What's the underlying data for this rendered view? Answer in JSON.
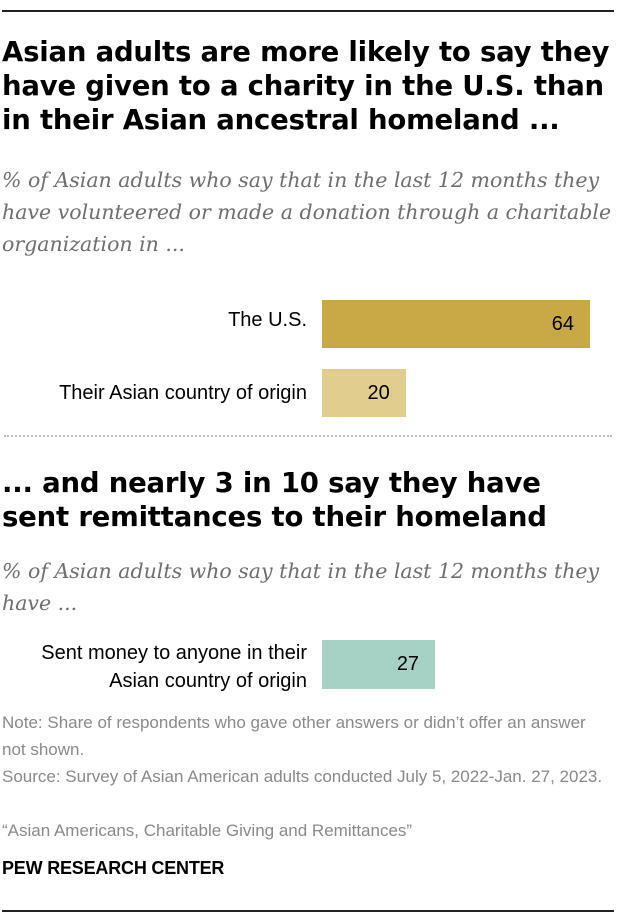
{
  "header": {
    "title": "Asian adults are more likely to say they have given to a charity in the U.S. than in their Asian ancestral homeland ...",
    "subtitle": "% of Asian adults who say that in the last 12 months they have volunteered or made a donation through a charitable organization in ..."
  },
  "section2": {
    "title": "... and nearly 3 in 10 say they have sent remittances to their homeland",
    "subtitle": "% of Asian adults who say that in the last 12 months they have ..."
  },
  "chart_data": [
    {
      "type": "bar",
      "orientation": "horizontal",
      "title": "Asian adults are more likely to say they have given to a charity in the U.S. than in their Asian ancestral homeland ...",
      "categories": [
        "The U.S.",
        "Their Asian country of origin"
      ],
      "values": [
        64,
        20
      ],
      "colors": [
        "#c9a945",
        "#e1cd8e"
      ],
      "grid": false
    },
    {
      "type": "bar",
      "orientation": "horizontal",
      "title": "... and nearly 3 in 10 say they have sent remittances to their homeland",
      "categories": [
        "Sent money to anyone in their Asian country of origin"
      ],
      "category_lines": [
        [
          "Sent money to anyone in their",
          "Asian country of origin"
        ]
      ],
      "values": [
        27
      ],
      "colors": [
        "#a6d2c6"
      ],
      "grid": false
    }
  ],
  "footer": {
    "note": "Note: Share of respondents who gave other answers or didn’t offer an answer not shown.",
    "source": "Source: Survey of Asian American adults conducted July 5, 2022-Jan. 27, 2023.",
    "report": "“Asian Americans, Charitable Giving and Remittances”",
    "brand": "PEW RESEARCH CENTER"
  }
}
